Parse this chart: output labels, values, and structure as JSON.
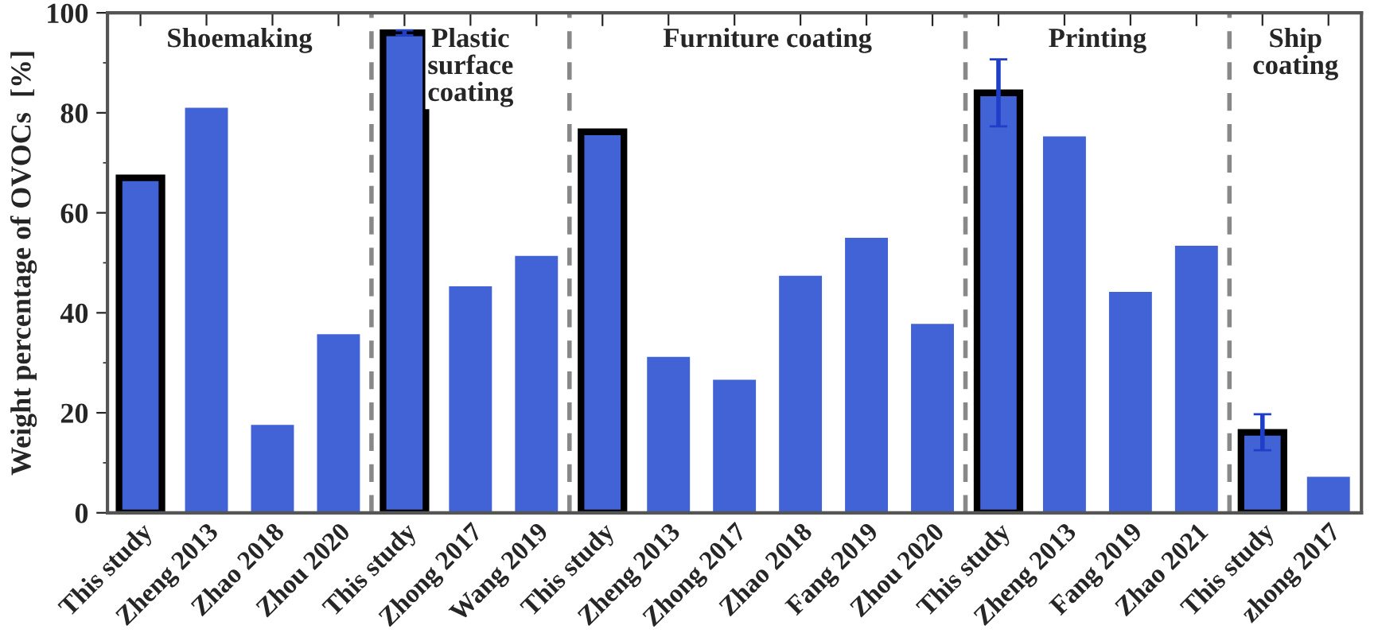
{
  "chart_data": {
    "type": "bar",
    "ylabel": "Weight percentage of OVOCs  [%]",
    "categories": [
      "This study",
      "Zheng 2013",
      "Zhao 2018",
      "Zhou 2020",
      "This study",
      "Zhong 2017",
      "Wang 2019",
      "This study",
      "Zheng 2013",
      "Zhong 2017",
      "Zhao 2018",
      "Fang 2019",
      "Zhou 2020",
      "This study",
      "Zheng 2013",
      "Fang 2019",
      "Zhao 2021",
      "This study",
      "zhong 2017"
    ],
    "ylim": [
      0,
      100
    ],
    "yticks": [
      0,
      20,
      40,
      60,
      80,
      100
    ],
    "series": [
      {
        "color": "#4263d6",
        "values": [
          67,
          null,
          null,
          null,
          96,
          null,
          null,
          76.2,
          null,
          null,
          null,
          null,
          null,
          84,
          null,
          null,
          null,
          16.1,
          null
        ],
        "errors": [
          null,
          null,
          null,
          null,
          0.5,
          null,
          null,
          null,
          null,
          null,
          null,
          null,
          null,
          6.7,
          null,
          null,
          null,
          3.6,
          null
        ]
      },
      {
        "color": "#4263d6",
        "values": [
          null,
          81,
          17.6,
          35.7,
          null,
          45.3,
          51.4,
          null,
          31.2,
          26.6,
          47.4,
          55,
          37.8,
          null,
          75.3,
          44.2,
          53.4,
          null,
          7.2
        ]
      }
    ],
    "annotations": [
      "Shoemaking",
      "Plastic\nsurface\ncoating",
      "Furniture coating",
      "Printing",
      "Ship\ncoating"
    ],
    "grid": false,
    "legend": false
  }
}
